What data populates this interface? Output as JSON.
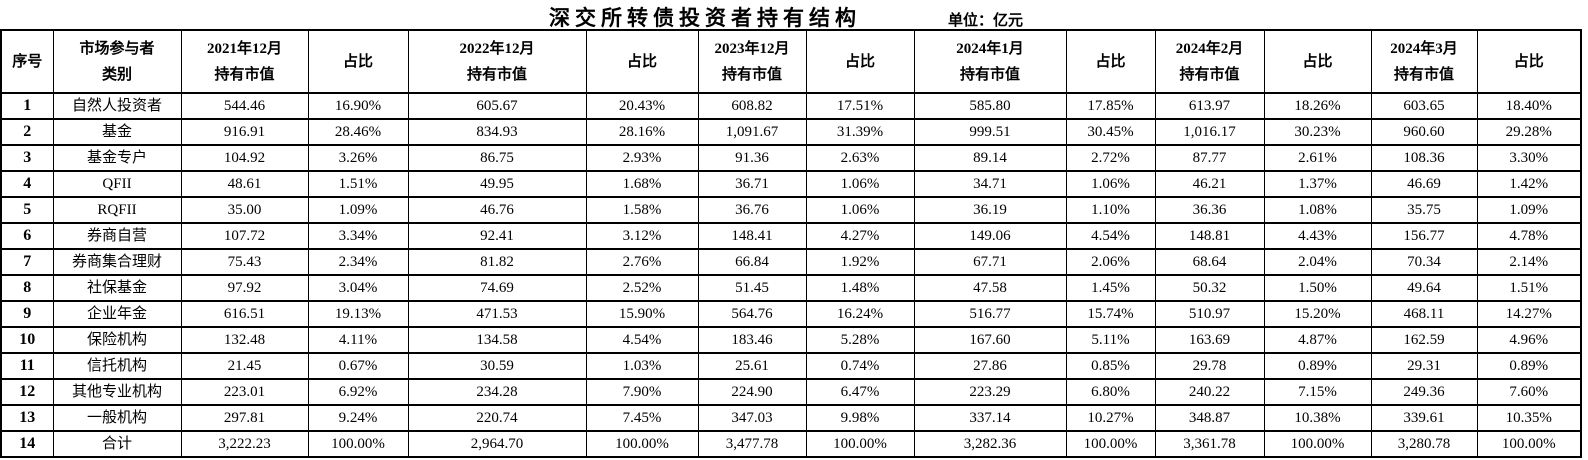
{
  "title": "深交所转债投资者持有结构",
  "unit_label": "单位：亿元",
  "colors": {
    "background": "#ffffff",
    "text": "#000000",
    "border": "#000000"
  },
  "table": {
    "headers": [
      "序号",
      "市场参与者\n类别",
      "2021年12月\n持有市值",
      "占比",
      "2022年12月\n持有市值",
      "占比",
      "2023年12月\n持有市值",
      "占比",
      "2024年1月\n持有市值",
      "占比",
      "2024年2月\n持有市值",
      "占比",
      "2024年3月\n持有市值",
      "占比"
    ],
    "rows": [
      [
        "1",
        "自然人投资者",
        "544.46",
        "16.90%",
        "605.67",
        "20.43%",
        "608.82",
        "17.51%",
        "585.80",
        "17.85%",
        "613.97",
        "18.26%",
        "603.65",
        "18.40%"
      ],
      [
        "2",
        "基金",
        "916.91",
        "28.46%",
        "834.93",
        "28.16%",
        "1,091.67",
        "31.39%",
        "999.51",
        "30.45%",
        "1,016.17",
        "30.23%",
        "960.60",
        "29.28%"
      ],
      [
        "3",
        "基金专户",
        "104.92",
        "3.26%",
        "86.75",
        "2.93%",
        "91.36",
        "2.63%",
        "89.14",
        "2.72%",
        "87.77",
        "2.61%",
        "108.36",
        "3.30%"
      ],
      [
        "4",
        "QFII",
        "48.61",
        "1.51%",
        "49.95",
        "1.68%",
        "36.71",
        "1.06%",
        "34.71",
        "1.06%",
        "46.21",
        "1.37%",
        "46.69",
        "1.42%"
      ],
      [
        "5",
        "RQFII",
        "35.00",
        "1.09%",
        "46.76",
        "1.58%",
        "36.76",
        "1.06%",
        "36.19",
        "1.10%",
        "36.36",
        "1.08%",
        "35.75",
        "1.09%"
      ],
      [
        "6",
        "券商自营",
        "107.72",
        "3.34%",
        "92.41",
        "3.12%",
        "148.41",
        "4.27%",
        "149.06",
        "4.54%",
        "148.81",
        "4.43%",
        "156.77",
        "4.78%"
      ],
      [
        "7",
        "券商集合理财",
        "75.43",
        "2.34%",
        "81.82",
        "2.76%",
        "66.84",
        "1.92%",
        "67.71",
        "2.06%",
        "68.64",
        "2.04%",
        "70.34",
        "2.14%"
      ],
      [
        "8",
        "社保基金",
        "97.92",
        "3.04%",
        "74.69",
        "2.52%",
        "51.45",
        "1.48%",
        "47.58",
        "1.45%",
        "50.32",
        "1.50%",
        "49.64",
        "1.51%"
      ],
      [
        "9",
        "企业年金",
        "616.51",
        "19.13%",
        "471.53",
        "15.90%",
        "564.76",
        "16.24%",
        "516.77",
        "15.74%",
        "510.97",
        "15.20%",
        "468.11",
        "14.27%"
      ],
      [
        "10",
        "保险机构",
        "132.48",
        "4.11%",
        "134.58",
        "4.54%",
        "183.46",
        "5.28%",
        "167.60",
        "5.11%",
        "163.69",
        "4.87%",
        "162.59",
        "4.96%"
      ],
      [
        "11",
        "信托机构",
        "21.45",
        "0.67%",
        "30.59",
        "1.03%",
        "25.61",
        "0.74%",
        "27.86",
        "0.85%",
        "29.78",
        "0.89%",
        "29.31",
        "0.89%"
      ],
      [
        "12",
        "其他专业机构",
        "223.01",
        "6.92%",
        "234.28",
        "7.90%",
        "224.90",
        "6.47%",
        "223.29",
        "6.80%",
        "240.22",
        "7.15%",
        "249.36",
        "7.60%"
      ],
      [
        "13",
        "一般机构",
        "297.81",
        "9.24%",
        "220.74",
        "7.45%",
        "347.03",
        "9.98%",
        "337.14",
        "10.27%",
        "348.87",
        "10.38%",
        "339.61",
        "10.35%"
      ],
      [
        "14",
        "合计",
        "3,222.23",
        "100.00%",
        "2,964.70",
        "100.00%",
        "3,477.78",
        "100.00%",
        "3,282.36",
        "100.00%",
        "3,361.78",
        "100.00%",
        "3,280.78",
        "100.00%"
      ]
    ]
  }
}
